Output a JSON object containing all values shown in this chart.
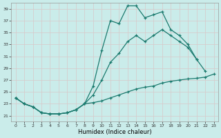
{
  "xlabel": "Humidex (Indice chaleur)",
  "xlim": [
    -0.5,
    23.5
  ],
  "ylim": [
    20.0,
    40.0
  ],
  "yticks": [
    21,
    23,
    25,
    27,
    29,
    31,
    33,
    35,
    37,
    39
  ],
  "xticks": [
    0,
    1,
    2,
    3,
    4,
    5,
    6,
    7,
    8,
    9,
    10,
    11,
    12,
    13,
    14,
    15,
    16,
    17,
    18,
    19,
    20,
    21,
    22,
    23
  ],
  "bg_color": "#caecea",
  "grid_color": "#e8f8f7",
  "line_color": "#1a7a6e",
  "curve_top_x": [
    0,
    1,
    2,
    3,
    4,
    5,
    6,
    7,
    8,
    9,
    10,
    11,
    12,
    13,
    14,
    15,
    16,
    17,
    18,
    19,
    20,
    21
  ],
  "curve_top_y": [
    24.0,
    23.0,
    22.5,
    21.5,
    21.3,
    21.3,
    21.5,
    22.0,
    23.0,
    26.0,
    32.0,
    37.0,
    36.5,
    39.5,
    39.5,
    37.5,
    38.0,
    38.5,
    35.5,
    34.5,
    33.0,
    30.5
  ],
  "curve_mid_x": [
    0,
    1,
    2,
    3,
    4,
    5,
    6,
    7,
    8,
    9,
    10,
    11,
    12,
    13,
    14,
    15,
    16,
    17,
    18,
    19,
    20,
    21,
    22
  ],
  "curve_mid_y": [
    24.0,
    23.0,
    22.5,
    21.5,
    21.3,
    21.3,
    21.5,
    22.0,
    23.0,
    24.5,
    27.0,
    30.0,
    31.5,
    33.5,
    34.5,
    33.5,
    34.5,
    35.5,
    34.5,
    33.5,
    32.5,
    30.5,
    28.5
  ],
  "curve_bot_x": [
    0,
    1,
    2,
    3,
    4,
    5,
    6,
    7,
    8,
    9,
    10,
    11,
    12,
    13,
    14,
    15,
    16,
    17,
    18,
    19,
    20,
    21,
    22,
    23
  ],
  "curve_bot_y": [
    24.0,
    23.0,
    22.5,
    21.5,
    21.3,
    21.3,
    21.5,
    22.0,
    23.0,
    23.2,
    23.5,
    24.0,
    24.5,
    25.0,
    25.5,
    25.8,
    26.0,
    26.5,
    26.8,
    27.0,
    27.2,
    27.3,
    27.5,
    28.0
  ]
}
